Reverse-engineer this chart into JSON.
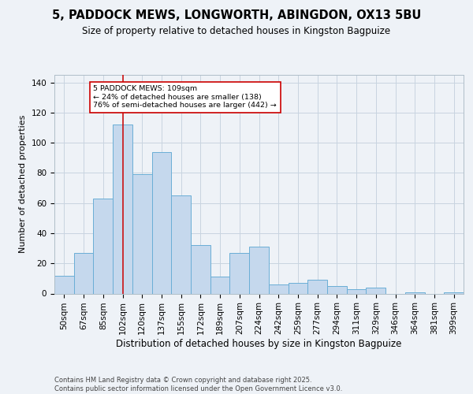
{
  "title1": "5, PADDOCK MEWS, LONGWORTH, ABINGDON, OX13 5BU",
  "title2": "Size of property relative to detached houses in Kingston Bagpuize",
  "xlabel": "Distribution of detached houses by size in Kingston Bagpuize",
  "ylabel": "Number of detached properties",
  "categories": [
    "50sqm",
    "67sqm",
    "85sqm",
    "102sqm",
    "120sqm",
    "137sqm",
    "155sqm",
    "172sqm",
    "189sqm",
    "207sqm",
    "224sqm",
    "242sqm",
    "259sqm",
    "277sqm",
    "294sqm",
    "311sqm",
    "329sqm",
    "346sqm",
    "364sqm",
    "381sqm",
    "399sqm"
  ],
  "values": [
    12,
    27,
    63,
    112,
    79,
    94,
    65,
    32,
    11,
    27,
    31,
    6,
    7,
    9,
    5,
    3,
    4,
    0,
    1,
    0,
    1
  ],
  "bar_color": "#c5d8ed",
  "bar_edge_color": "#6aaed6",
  "vline_x_idx": 3,
  "vline_color": "#cc0000",
  "annotation_text": "5 PADDOCK MEWS: 109sqm\n← 24% of detached houses are smaller (138)\n76% of semi-detached houses are larger (442) →",
  "annotation_box_color": "#ffffff",
  "annotation_box_edge": "#cc0000",
  "ylim": [
    0,
    145
  ],
  "yticks": [
    0,
    20,
    40,
    60,
    80,
    100,
    120,
    140
  ],
  "footer": "Contains HM Land Registry data © Crown copyright and database right 2025.\nContains public sector information licensed under the Open Government Licence v3.0.",
  "bg_color": "#eef2f7",
  "plot_bg_color": "#eef2f7",
  "grid_color": "#c8d4e0",
  "title1_fontsize": 10.5,
  "title2_fontsize": 8.5,
  "xlabel_fontsize": 8.5,
  "ylabel_fontsize": 8.0,
  "tick_fontsize": 7.5,
  "footer_fontsize": 6.0
}
